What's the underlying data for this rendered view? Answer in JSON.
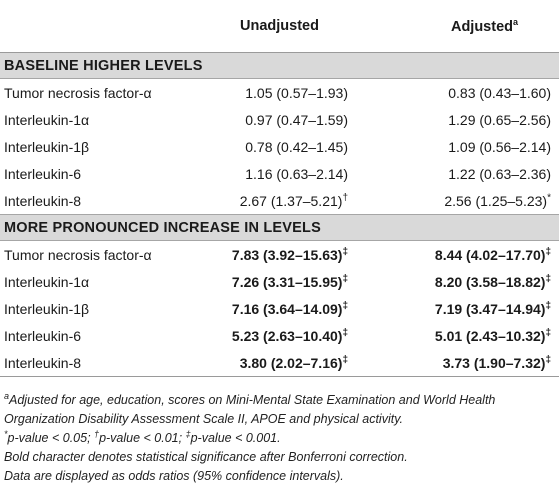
{
  "header": {
    "col2": "Unadjusted",
    "col3": "Adjusted",
    "col3_marker": "a"
  },
  "sections": [
    {
      "title": "BASELINE HIGHER LEVELS",
      "rows": [
        {
          "label": "Tumor necrosis factor-α",
          "unadjusted": "1.05 (0.57–1.93)",
          "unadjusted_mark": "",
          "adjusted": "0.83 (0.43–1.60)",
          "adjusted_mark": ""
        },
        {
          "label": "Interleukin-1α",
          "unadjusted": "0.97 (0.47–1.59)",
          "unadjusted_mark": "",
          "adjusted": "1.29 (0.65–2.56)",
          "adjusted_mark": ""
        },
        {
          "label": "Interleukin-1β",
          "unadjusted": "0.78 (0.42–1.45)",
          "unadjusted_mark": "",
          "adjusted": "1.09 (0.56–2.14)",
          "adjusted_mark": ""
        },
        {
          "label": "Interleukin-6",
          "unadjusted": "1.16 (0.63–2.14)",
          "unadjusted_mark": "",
          "adjusted": "1.22 (0.63–2.36)",
          "adjusted_mark": ""
        },
        {
          "label": "Interleukin-8",
          "unadjusted": "2.67 (1.37–5.21)",
          "unadjusted_mark": "†",
          "adjusted": "2.56 (1.25–5.23)",
          "adjusted_mark": "*"
        }
      ]
    },
    {
      "title": "MORE PRONOUNCED INCREASE IN LEVELS",
      "rows": [
        {
          "label": "Tumor necrosis factor-α",
          "unadjusted": "7.83 (3.92–15.63)",
          "unadjusted_mark": "‡",
          "adjusted": "8.44 (4.02–17.70)",
          "adjusted_mark": "‡"
        },
        {
          "label": "Interleukin-1α",
          "unadjusted": "7.26 (3.31–15.95)",
          "unadjusted_mark": "‡",
          "adjusted": "8.20 (3.58–18.82)",
          "adjusted_mark": "‡"
        },
        {
          "label": "Interleukin-1β",
          "unadjusted": "7.16 (3.64–14.09)",
          "unadjusted_mark": "‡",
          "adjusted": "7.19 (3.47–14.94)",
          "adjusted_mark": "‡"
        },
        {
          "label": "Interleukin-6",
          "unadjusted": "5.23 (2.63–10.40)",
          "unadjusted_mark": "‡",
          "adjusted": "5.01 (2.43–10.32)",
          "adjusted_mark": "‡"
        },
        {
          "label": "Interleukin-8",
          "unadjusted": "3.80 (2.02–7.16)",
          "unadjusted_mark": "‡",
          "adjusted": "3.73 (1.90–7.32)",
          "adjusted_mark": "‡"
        }
      ]
    }
  ],
  "footnotes": {
    "a_marker": "a",
    "a_text": "Adjusted for age, education, scores on Mini-Mental State Examination and World Health Organization Disability Assessment Scale II, APOE and physical activity.",
    "p1_marker": "*",
    "p1_text": "p-value < 0.05; ",
    "p2_marker": "†",
    "p2_text": "p-value < 0.01; ",
    "p3_marker": "‡",
    "p3_text": "p-value < 0.001.",
    "bold_note": "Bold character denotes statistical significance after Bonferroni correction.",
    "data_note": "Data are displayed as odds ratios (95% confidence intervals)."
  }
}
